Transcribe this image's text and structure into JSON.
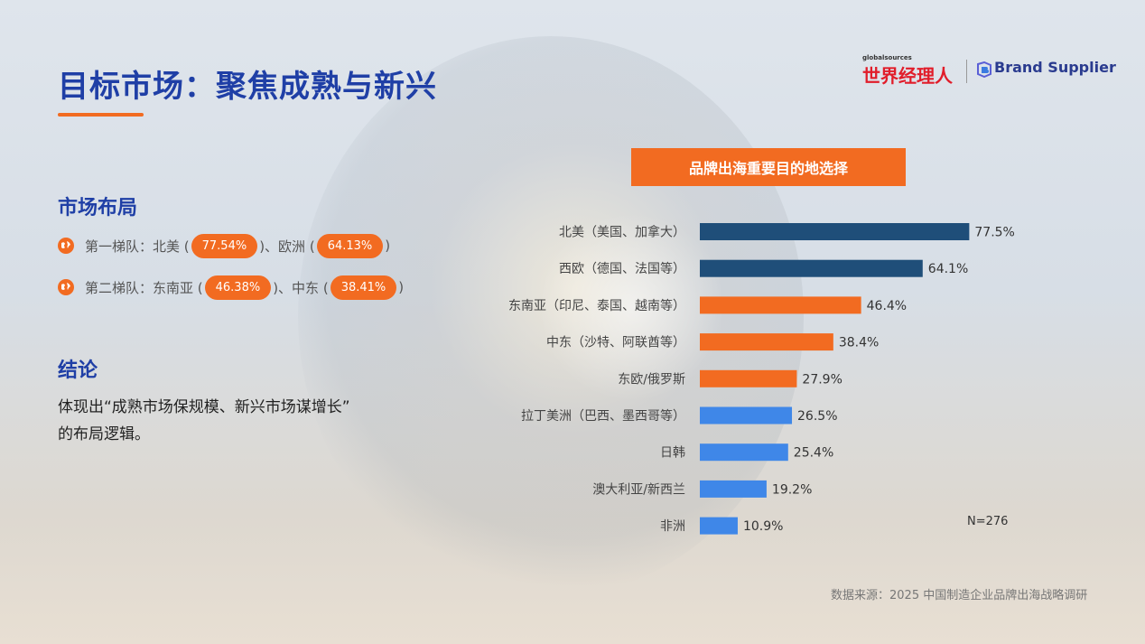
{
  "header": {
    "title": "目标市场：聚焦成熟与新兴"
  },
  "logo": {
    "small_text": "globalsources",
    "chinese": "世界经理人",
    "brand_supplier": "Brand Supplier"
  },
  "market_layout": {
    "heading": "市场布局",
    "tier1": {
      "prefix": "第一梯队：北美 (",
      "v1": "77.54%",
      "mid": ")、欧洲 (",
      "v2": "64.13%",
      "suffix": ")"
    },
    "tier2": {
      "prefix": "第二梯队：东南亚 (",
      "v1": "46.38%",
      "mid": ")、中东 (",
      "v2": "38.41%",
      "suffix": ")"
    },
    "icon": "globe-icon"
  },
  "conclusion": {
    "heading": "结论",
    "line1": "体现出“成熟市场保规模、新兴市场谋增长”",
    "line2": "的布局逻辑。"
  },
  "chart_header": "品牌出海重要目的地选择",
  "colors": {
    "accent": "#f26b21",
    "title_blue": "#1f3fa6",
    "bar_dark": "#1f4e79",
    "bar_orange": "#f26b21",
    "bar_blue": "#3f87e8"
  },
  "chart_data": {
    "type": "bar",
    "orientation": "horizontal",
    "categories": [
      "北美（美国、加拿大）",
      "西欧（德国、法国等）",
      "东南亚（印尼、泰国、越南等）",
      "中东（沙特、阿联酋等）",
      "东欧/俄罗斯",
      "拉丁美洲（巴西、墨西哥等）",
      "日韩",
      "澳大利亚/新西兰",
      "非洲"
    ],
    "values": [
      77.5,
      64.1,
      46.4,
      38.4,
      27.9,
      26.5,
      25.4,
      19.2,
      10.9
    ],
    "value_labels": [
      "77.5%",
      "64.1%",
      "46.4%",
      "38.4%",
      "27.9%",
      "26.5%",
      "25.4%",
      "19.2%",
      "10.9%"
    ],
    "bar_colors": [
      "#1f4e79",
      "#1f4e79",
      "#f26b21",
      "#f26b21",
      "#f26b21",
      "#3f87e8",
      "#3f87e8",
      "#3f87e8",
      "#3f87e8"
    ],
    "xlim": [
      0,
      100
    ],
    "annotation": "N=276"
  },
  "source": "数据来源：2025 中国制造企业品牌出海战略调研"
}
